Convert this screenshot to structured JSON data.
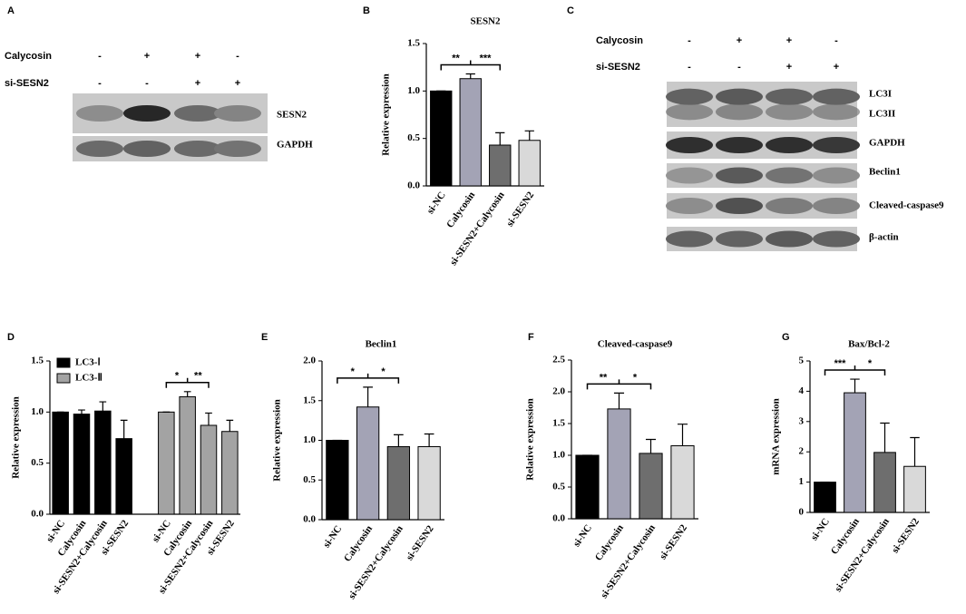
{
  "blots": [
    {
      "panel": "A",
      "treatments": [
        {
          "name": "Calycosin",
          "signs": [
            "-",
            "+",
            "+",
            "-"
          ]
        },
        {
          "name": "si-SESN2",
          "signs": [
            "-",
            "-",
            "+",
            "+"
          ]
        }
      ],
      "bands": [
        "SESN2",
        "GAPDH"
      ]
    },
    {
      "panel": "C",
      "treatments": [
        {
          "name": "Calycosin",
          "signs": [
            "-",
            "+",
            "+",
            "-"
          ]
        },
        {
          "name": "si-SESN2",
          "signs": [
            "-",
            "-",
            "+",
            "+"
          ]
        }
      ],
      "bands": [
        "LC3I",
        "LC3II",
        "GAPDH",
        "Beclin1",
        "Cleaved-caspase9",
        "β-actin"
      ]
    }
  ],
  "chart_data": [
    {
      "type": "bar",
      "panel": "B",
      "title": "SESN2",
      "ylabel": "Relative expression",
      "categories": [
        "si-NC",
        "Calycosin",
        "si-SESN2+Calycosin",
        "si-SESN2"
      ],
      "values": [
        1.0,
        1.13,
        0.43,
        0.48
      ],
      "errors": [
        0,
        0.05,
        0.13,
        0.1
      ],
      "colors": [
        "#000000",
        "#a3a3b5",
        "#6e6e6e",
        "#d9d9d9"
      ],
      "ylim": [
        0,
        1.5
      ],
      "yticks": [
        {
          "value": 0,
          "label": "0.0"
        },
        0.5,
        {
          "value": 1,
          "label": "1.0"
        },
        1.5
      ],
      "significance": [
        "**",
        "***"
      ]
    },
    {
      "type": "grouped_bar",
      "panel": "D",
      "ylabel": "Relative expression",
      "categories": [
        "si-NC",
        "Calycosin",
        "si-SESN2+Calycosin",
        "si-SESN2"
      ],
      "series": [
        {
          "name": "LC3-Ⅰ",
          "color": "#000000",
          "values": [
            1.0,
            0.98,
            1.01,
            0.74
          ],
          "errors": [
            0,
            0.04,
            0.09,
            0.18
          ]
        },
        {
          "name": "LC3-Ⅱ",
          "color": "#a3a3a3",
          "values": [
            1.0,
            1.15,
            0.87,
            0.81
          ],
          "errors": [
            0,
            0.05,
            0.12,
            0.11
          ]
        }
      ],
      "ylim": [
        0,
        1.5
      ],
      "yticks": [
        {
          "value": 0,
          "label": "0.0"
        },
        0.5,
        {
          "value": 1,
          "label": "1.0"
        },
        1.5
      ],
      "significance": [
        "*",
        "**"
      ]
    },
    {
      "type": "bar",
      "panel": "E",
      "title": "Beclin1",
      "ylabel": "Relative expression",
      "categories": [
        "si-NC",
        "Calycosin",
        "si-SESN2+Calycosin",
        "si-SESN2"
      ],
      "values": [
        1.0,
        1.42,
        0.92,
        0.92
      ],
      "errors": [
        0,
        0.25,
        0.15,
        0.16
      ],
      "colors": [
        "#000000",
        "#a3a3b5",
        "#6e6e6e",
        "#d9d9d9"
      ],
      "ylim": [
        0,
        2
      ],
      "yticks": [
        {
          "value": 0,
          "label": "0.0"
        },
        0.5,
        {
          "value": 1,
          "label": "1.0"
        },
        1.5,
        {
          "value": 2,
          "label": "2.0"
        }
      ],
      "significance": [
        "*",
        "*"
      ]
    },
    {
      "type": "bar",
      "panel": "F",
      "title": "Cleaved-caspase9",
      "ylabel": "Relative expression",
      "categories": [
        "si-NC",
        "Calycosin",
        "si-SESN2+Calycosin",
        "si-SESN2"
      ],
      "values": [
        1.0,
        1.73,
        1.03,
        1.15
      ],
      "errors": [
        0,
        0.25,
        0.22,
        0.34
      ],
      "colors": [
        "#000000",
        "#a3a3b5",
        "#6e6e6e",
        "#d9d9d9"
      ],
      "ylim": [
        0,
        2.5
      ],
      "yticks": [
        {
          "value": 0,
          "label": "0.0"
        },
        0.5,
        {
          "value": 1,
          "label": "1.0"
        },
        1.5,
        {
          "value": 2,
          "label": "2.0"
        },
        2.5
      ],
      "significance": [
        "**",
        "*"
      ]
    },
    {
      "type": "bar",
      "panel": "G",
      "title": "Bax/Bcl-2",
      "ylabel": "mRNA expression",
      "categories": [
        "si-NC",
        "Calycosin",
        "si-SESN2+Calycosin",
        "si-SESN2"
      ],
      "values": [
        1.0,
        3.95,
        1.98,
        1.52
      ],
      "errors": [
        0,
        0.45,
        0.97,
        0.95
      ],
      "colors": [
        "#000000",
        "#a3a3b5",
        "#6e6e6e",
        "#d9d9d9"
      ],
      "ylim": [
        0,
        5
      ],
      "yticks": [
        0,
        1,
        2,
        3,
        4,
        5
      ],
      "significance": [
        "***",
        "*"
      ]
    }
  ]
}
